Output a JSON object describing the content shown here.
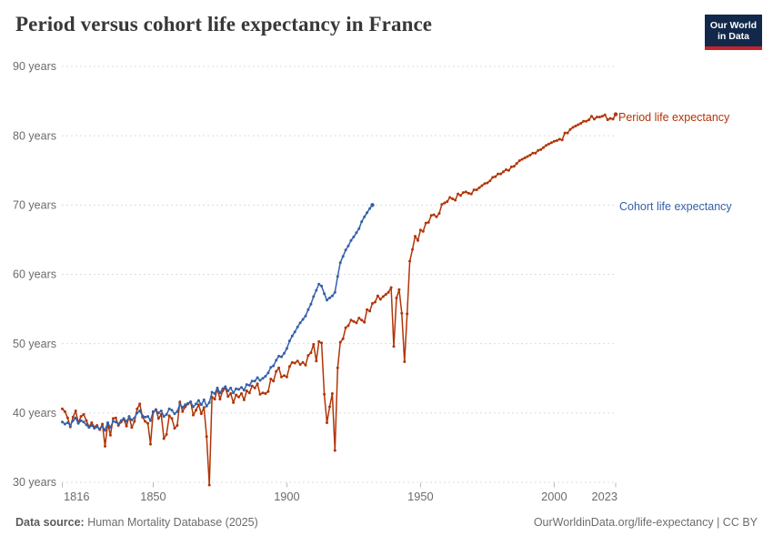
{
  "header": {
    "title": "Period versus cohort life expectancy in France",
    "logo": {
      "line1": "Our World",
      "line2": "in Data"
    }
  },
  "footer": {
    "source_label": "Data source:",
    "source_value": " Human Mortality Database (2025)",
    "credit": "OurWorldinData.org/life-expectancy | CC BY"
  },
  "colors": {
    "period_line": "#b13507",
    "cohort_line": "#3360a9",
    "gridline": "#dcdcdc",
    "tick_mark": "#b9b9b9",
    "tick_label": "#6b6b6b",
    "logo_navy": "#12284a",
    "logo_red": "#c5232a"
  },
  "chart_data": {
    "type": "line",
    "title": "Period versus cohort life expectancy in France",
    "xlabel": "",
    "ylabel": "",
    "x_range": [
      1816,
      2023
    ],
    "y_range": [
      30,
      90
    ],
    "x_ticks": [
      1816,
      1850,
      1900,
      1950,
      2000,
      2023
    ],
    "y_ticks": [
      30,
      40,
      50,
      60,
      70,
      80,
      90
    ],
    "y_tick_suffix": " years",
    "grid": "horizontal-dashed",
    "legend_position": "line-end-labels-right",
    "series": [
      {
        "name": "Period life expectancy",
        "color": "#b13507",
        "start_year": 1816,
        "values": [
          40.6,
          40.2,
          39.3,
          38.0,
          39.4,
          40.3,
          38.6,
          39.5,
          39.8,
          38.9,
          38.0,
          38.6,
          38.0,
          38.2,
          37.6,
          38.4,
          35.2,
          38.5,
          36.8,
          39.2,
          39.3,
          38.2,
          38.7,
          39.1,
          38.1,
          39.5,
          37.9,
          38.8,
          40.6,
          41.3,
          39.4,
          38.8,
          38.5,
          35.5,
          40.1,
          40.5,
          39.2,
          39.8,
          36.3,
          36.9,
          39.6,
          39.2,
          37.8,
          38.2,
          41.6,
          40.2,
          40.9,
          41.3,
          41.6,
          39.7,
          40.4,
          41.2,
          39.9,
          40.8,
          36.6,
          29.6,
          42.3,
          42.0,
          43.5,
          42.0,
          43.2,
          43.6,
          42.4,
          42.8,
          41.5,
          42.6,
          42.3,
          42.8,
          41.9,
          43.2,
          42.9,
          43.9,
          43.6,
          44.2,
          42.7,
          42.9,
          42.8,
          43.1,
          44.9,
          44.6,
          46.0,
          46.5,
          45.2,
          45.4,
          45.2,
          46.7,
          47.3,
          47.2,
          47.5,
          47.0,
          47.3,
          46.9,
          48.3,
          48.7,
          49.9,
          47.5,
          50.3,
          50.1,
          42.7,
          38.6,
          40.9,
          42.8,
          34.6,
          46.5,
          50.2,
          50.7,
          52.3,
          52.6,
          53.4,
          53.2,
          53.0,
          53.7,
          53.4,
          53.1,
          54.9,
          54.7,
          55.8,
          56.0,
          56.9,
          56.4,
          56.8,
          57.1,
          57.4,
          58.1,
          49.6,
          56.6,
          57.8,
          54.4,
          47.4,
          54.3,
          61.9,
          63.6,
          65.5,
          64.9,
          66.4,
          66.2,
          67.4,
          67.5,
          68.5,
          68.6,
          68.3,
          68.8,
          70.1,
          70.3,
          70.5,
          71.1,
          70.9,
          70.7,
          71.6,
          71.4,
          71.8,
          71.9,
          71.7,
          71.6,
          72.2,
          72.2,
          72.5,
          72.8,
          73.1,
          73.2,
          73.5,
          74.0,
          74.1,
          74.5,
          74.5,
          74.8,
          75.1,
          75.0,
          75.5,
          75.6,
          76.0,
          76.4,
          76.6,
          76.8,
          77.0,
          77.2,
          77.5,
          77.5,
          77.9,
          78.0,
          78.3,
          78.6,
          78.8,
          79.0,
          79.2,
          79.3,
          79.5,
          79.4,
          80.4,
          80.4,
          80.9,
          81.2,
          81.4,
          81.6,
          81.8,
          82.1,
          82.1,
          82.3,
          82.8,
          82.4,
          82.7,
          82.7,
          82.8,
          83.0,
          82.3,
          82.5,
          82.4,
          83.1
        ]
      },
      {
        "name": "Cohort life expectancy",
        "color": "#3360a9",
        "start_year": 1816,
        "values": [
          38.7,
          38.4,
          38.6,
          38.2,
          38.9,
          39.3,
          38.5,
          38.9,
          38.7,
          38.3,
          37.9,
          38.2,
          37.8,
          38.0,
          37.7,
          38.1,
          37.5,
          38.6,
          37.9,
          38.8,
          38.7,
          38.4,
          38.9,
          39.2,
          38.8,
          39.4,
          39.0,
          39.3,
          40.0,
          40.3,
          39.6,
          39.4,
          39.5,
          38.9,
          40.2,
          40.4,
          40.0,
          40.3,
          39.5,
          39.8,
          40.6,
          40.4,
          39.9,
          40.2,
          41.3,
          40.8,
          41.2,
          41.4,
          41.6,
          40.9,
          41.3,
          41.8,
          41.2,
          41.9,
          41.0,
          41.5,
          43.0,
          42.8,
          43.6,
          42.9,
          43.5,
          43.8,
          43.2,
          43.6,
          42.9,
          43.5,
          43.4,
          43.7,
          43.3,
          44.1,
          44.0,
          44.6,
          44.6,
          45.1,
          44.7,
          45.0,
          45.3,
          45.8,
          46.6,
          46.8,
          47.6,
          48.2,
          48.1,
          48.6,
          49.3,
          50.4,
          51.1,
          51.7,
          52.4,
          53.0,
          53.5,
          54.0,
          54.9,
          55.7,
          56.8,
          57.7,
          58.6,
          58.3,
          57.2,
          56.3,
          56.6,
          56.9,
          57.4,
          59.7,
          61.7,
          62.6,
          63.5,
          64.1,
          64.9,
          65.4,
          66.0,
          66.6,
          67.6,
          68.3,
          68.9,
          69.5,
          70.0
        ]
      }
    ]
  }
}
